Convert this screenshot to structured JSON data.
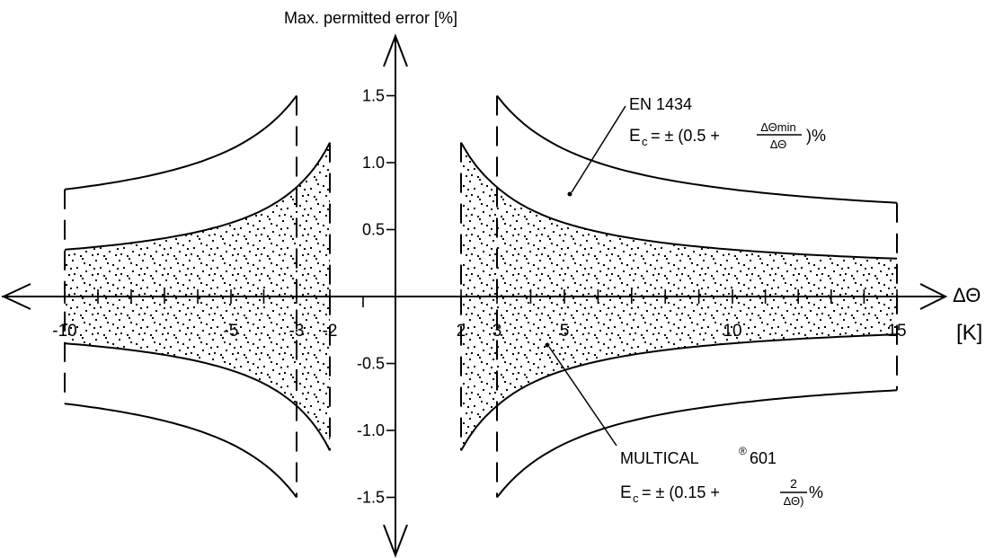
{
  "chart_data": {
    "type": "area",
    "ylabel": "Max. permitted error [%]",
    "xlabel_symbol": "ΔΘ",
    "xlabel_unit": "[K]",
    "x_ticks": [
      "-10",
      "-5",
      "-3",
      "-2",
      "2",
      "3",
      "5",
      "10",
      "15"
    ],
    "x_tick_values": [
      -10,
      -5,
      -3,
      -2,
      2,
      3,
      5,
      10,
      15
    ],
    "y_ticks": [
      "1.5",
      "1.0",
      "0.5",
      "-0.5",
      "-1.0",
      "-1.5"
    ],
    "y_tick_values": [
      1.5,
      1.0,
      0.5,
      -0.5,
      -1.0,
      -1.5
    ],
    "ylim": [
      -1.5,
      1.5
    ],
    "series": [
      {
        "name": "EN 1434",
        "formula_prefix": "E",
        "formula_sub": "c",
        "formula_eq": "=  ± (0.5 +",
        "formula_num": "ΔΘmin",
        "formula_den": "ΔΘ",
        "formula_end": ")%",
        "delta_theta_min": 3,
        "x_range_pos": [
          3,
          15
        ],
        "x_range_neg": [
          -10,
          -3
        ],
        "points_pos": [
          [
            3,
            1.5
          ],
          [
            5,
            1.1
          ],
          [
            10,
            0.8
          ],
          [
            15,
            0.7
          ]
        ],
        "points_neg": [
          [
            -10,
            0.8
          ],
          [
            -5,
            1.1
          ],
          [
            -3,
            1.5
          ]
        ]
      },
      {
        "name": "MULTICAL",
        "name_sup": "®",
        "name_suffix": "601",
        "formula_prefix": "E",
        "formula_sub": "c",
        "formula_eq": "=  ± (0.15 +",
        "formula_num": "2",
        "formula_den": "ΔΘ)",
        "formula_end": "%",
        "x_range_pos": [
          2,
          15
        ],
        "x_range_neg": [
          -10,
          -2
        ],
        "points_pos": [
          [
            2,
            1.15
          ],
          [
            3,
            0.817
          ],
          [
            5,
            0.55
          ],
          [
            10,
            0.35
          ],
          [
            15,
            0.283
          ]
        ],
        "points_neg": [
          [
            -10,
            0.35
          ],
          [
            -5,
            0.55
          ],
          [
            -3,
            0.817
          ],
          [
            -2,
            1.15
          ]
        ]
      }
    ],
    "grid": false
  }
}
